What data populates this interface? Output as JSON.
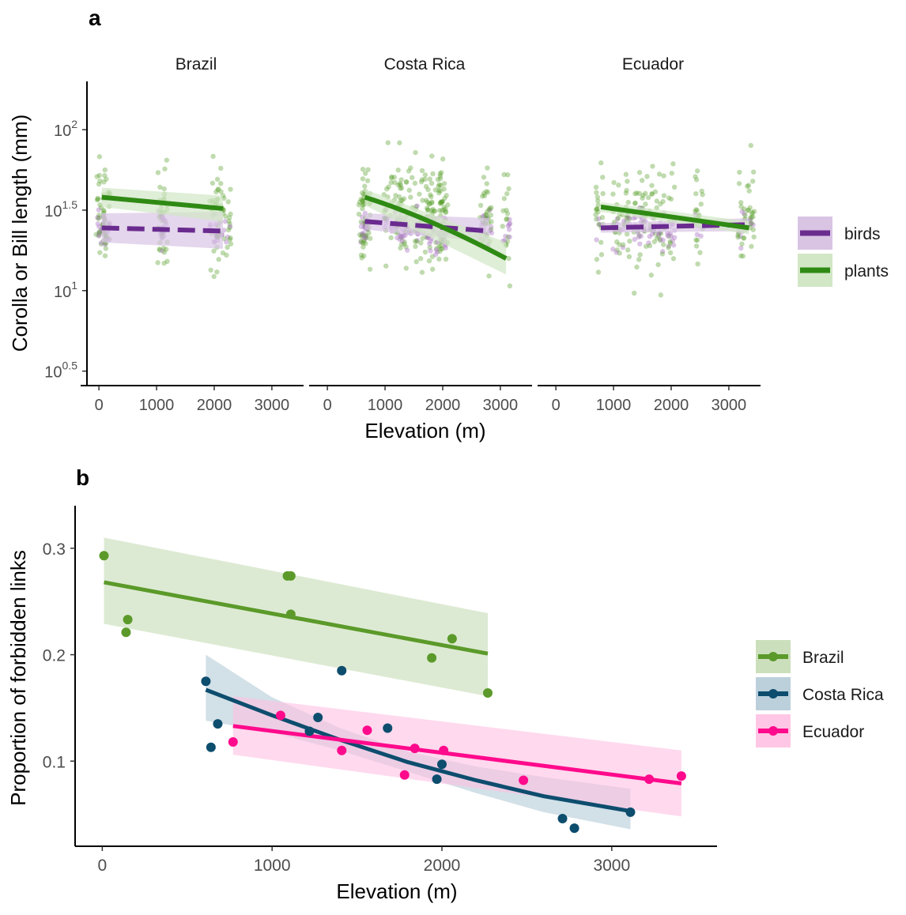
{
  "chart_data": [
    {
      "type": "scatter",
      "panel_label": "a",
      "ylabel": "Corolla or Bill length (mm)",
      "xlabel": "Elevation (m)",
      "x_ticks": [
        "0",
        "1000",
        "2000",
        "3000"
      ],
      "x_tick_values": [
        0,
        1000,
        2000,
        3000
      ],
      "xlim": [
        -180,
        3550
      ],
      "y_scale": "log10",
      "ylim_log10": [
        0.41,
        2.3
      ],
      "y_ticks": [
        {
          "value": 2.0,
          "base": "10",
          "exp": "2"
        },
        {
          "value": 1.5,
          "base": "10",
          "exp": "1.5"
        },
        {
          "value": 1.0,
          "base": "10",
          "exp": "1"
        },
        {
          "value": 0.5,
          "base": "10",
          "exp": "0.5"
        }
      ],
      "legend": [
        {
          "name": "birds",
          "color": "#6a2b8f",
          "band": "#d9c4e4",
          "linetype": "dashed"
        },
        {
          "name": "plants",
          "color": "#2f8a14",
          "band": "#d2e7c6",
          "linetype": "solid"
        }
      ],
      "facets": [
        {
          "name": "Brazil",
          "elevations": [
            20,
            60,
            130,
            1090,
            1120,
            1990,
            2080,
            2220
          ],
          "plants": {
            "x": [
              50,
              2150
            ],
            "y_log10": [
              1.58,
              1.51
            ],
            "ci_low": [
              1.52,
              1.43
            ],
            "ci_high": [
              1.64,
              1.59
            ]
          },
          "birds": {
            "x": [
              50,
              2150
            ],
            "y_log10": [
              1.39,
              1.37
            ],
            "ci_low": [
              1.3,
              1.26
            ],
            "ci_high": [
              1.48,
              1.49
            ]
          }
        },
        {
          "name": "Costa Rica",
          "elevations": [
            610,
            650,
            680,
            1050,
            1230,
            1270,
            1410,
            1560,
            1680,
            1780,
            1840,
            1970,
            2000,
            2020,
            2710,
            2780,
            3100
          ],
          "plants": {
            "x": [
              650,
              3100
            ],
            "y_log10": [
              1.58,
              1.2
            ],
            "ci_low": [
              1.53,
              1.1
            ],
            "ci_high": [
              1.63,
              1.3
            ]
          },
          "birds": {
            "x": [
              650,
              2800
            ],
            "y_log10": [
              1.43,
              1.37
            ],
            "ci_low": [
              1.38,
              1.3
            ],
            "ci_high": [
              1.48,
              1.45
            ]
          }
        },
        {
          "name": "Ecuador",
          "elevations": [
            760,
            1050,
            1220,
            1410,
            1560,
            1690,
            1840,
            2000,
            2480,
            3220,
            3380
          ],
          "plants": {
            "x": [
              780,
              3350
            ],
            "y_log10": [
              1.52,
              1.39
            ],
            "ci_low": [
              1.49,
              1.35
            ],
            "ci_high": [
              1.55,
              1.43
            ]
          },
          "birds": {
            "x": [
              780,
              3350
            ],
            "y_log10": [
              1.39,
              1.41
            ],
            "ci_low": [
              1.36,
              1.37
            ],
            "ci_high": [
              1.42,
              1.45
            ]
          }
        }
      ]
    },
    {
      "type": "scatter",
      "panel_label": "b",
      "xlabel": "Elevation (m)",
      "ylabel": "Proportion of forbidden links",
      "xlim": [
        -160,
        3620
      ],
      "ylim": [
        0.02,
        0.34
      ],
      "x_ticks": [
        "0",
        "1000",
        "2000",
        "3000"
      ],
      "x_tick_values": [
        0,
        1000,
        2000,
        3000
      ],
      "y_ticks": [
        "0.1",
        "0.2",
        "0.3"
      ],
      "y_tick_values": [
        0.1,
        0.2,
        0.3
      ],
      "legend_position": "right",
      "series": [
        {
          "name": "Brazil",
          "color": "#5b9a2a",
          "band": "#c7dcb5",
          "points": [
            [
              10,
              0.293
            ],
            [
              150,
              0.233
            ],
            [
              140,
              0.221
            ],
            [
              1090,
              0.274
            ],
            [
              1110,
              0.274
            ],
            [
              1110,
              0.238
            ],
            [
              1940,
              0.197
            ],
            [
              2060,
              0.215
            ],
            [
              2270,
              0.164
            ]
          ],
          "fit": {
            "x": [
              10,
              2270
            ],
            "y": [
              0.268,
              0.201
            ]
          },
          "ci": {
            "x": [
              10,
              2270
            ],
            "low": [
              0.229,
              0.161
            ],
            "high": [
              0.31,
              0.239
            ]
          }
        },
        {
          "name": "Costa Rica",
          "color": "#0d4d6e",
          "band": "#b4cbd7",
          "points": [
            [
              610,
              0.175
            ],
            [
              640,
              0.113
            ],
            [
              680,
              0.135
            ],
            [
              1220,
              0.128
            ],
            [
              1270,
              0.141
            ],
            [
              1410,
              0.185
            ],
            [
              1680,
              0.131
            ],
            [
              1970,
              0.083
            ],
            [
              2000,
              0.097
            ],
            [
              2710,
              0.046
            ],
            [
              2780,
              0.037
            ],
            [
              3110,
              0.052
            ]
          ],
          "fit": {
            "x": [
              610,
              1000,
              1400,
              1800,
              2200,
              2600,
              3110
            ],
            "y": [
              0.167,
              0.143,
              0.12,
              0.099,
              0.082,
              0.067,
              0.053
            ]
          },
          "ci": {
            "x": [
              610,
              1000,
              1400,
              1800,
              2200,
              2600,
              3110
            ],
            "low": [
              0.138,
              0.127,
              0.11,
              0.09,
              0.07,
              0.052,
              0.036
            ],
            "high": [
              0.2,
              0.16,
              0.131,
              0.109,
              0.095,
              0.085,
              0.074
            ]
          }
        },
        {
          "name": "Ecuador",
          "color": "#ff0a8c",
          "band": "#ffc0e2",
          "points": [
            [
              770,
              0.118
            ],
            [
              1050,
              0.143
            ],
            [
              1410,
              0.11
            ],
            [
              1560,
              0.129
            ],
            [
              1780,
              0.087
            ],
            [
              1840,
              0.112
            ],
            [
              2010,
              0.11
            ],
            [
              2480,
              0.082
            ],
            [
              3220,
              0.083
            ],
            [
              3410,
              0.086
            ]
          ],
          "fit": {
            "x": [
              770,
              3410
            ],
            "y": [
              0.133,
              0.079
            ]
          },
          "ci": {
            "x": [
              770,
              3410
            ],
            "low": [
              0.106,
              0.048
            ],
            "high": [
              0.161,
              0.11
            ]
          }
        }
      ]
    }
  ]
}
